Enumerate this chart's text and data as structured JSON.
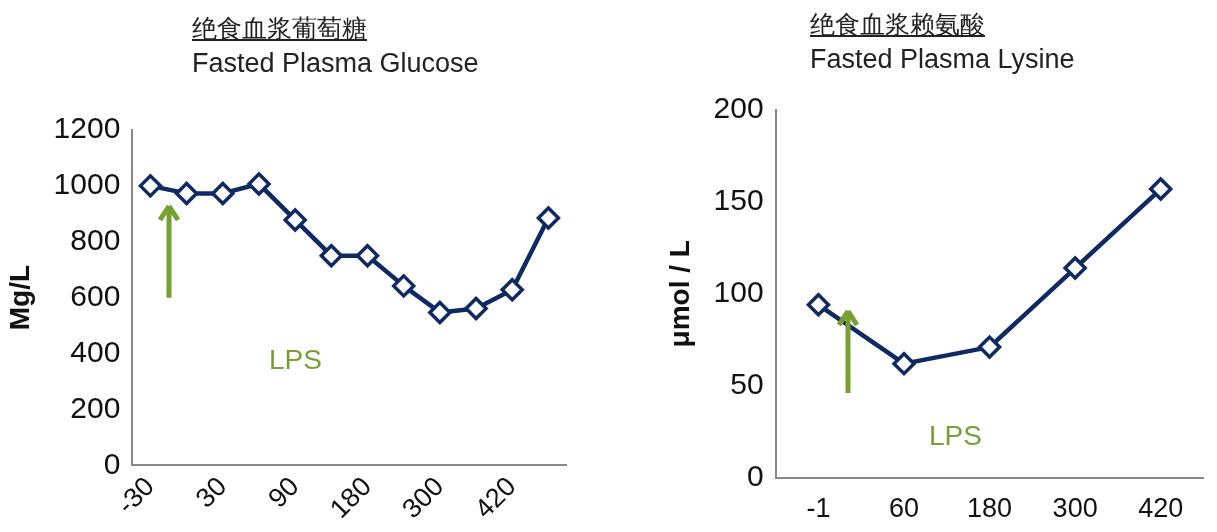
{
  "chart_data": [
    {
      "type": "line",
      "title": "绝食血浆葡萄糖",
      "subtitle": "Fasted Plasma Glucose",
      "ylabel": "Mg/L",
      "categories": [
        "-30",
        null,
        "30",
        null,
        "90",
        null,
        "180",
        null,
        "300",
        null,
        "420",
        null
      ],
      "series": [
        {
          "color": "#0f2a63",
          "values": [
            1000,
            973,
            973,
            1007,
            878,
            750,
            750,
            642,
            547,
            561,
            628,
            885
          ]
        }
      ],
      "ylim": [
        0,
        1200
      ],
      "yticks": [
        0,
        200,
        400,
        600,
        800,
        1000,
        1200
      ],
      "grid": false,
      "legend": false,
      "marker": "diamond",
      "annotations": [
        "LPS"
      ]
    },
    {
      "type": "line",
      "title": "绝食血浆赖氨酸",
      "subtitle": "Fasted Plasma Lysine",
      "ylabel": "μmol / L",
      "categories": [
        "-1",
        "60",
        "180",
        "300",
        "420"
      ],
      "series": [
        {
          "color": "#0f2a63",
          "values": [
            94,
            62,
            71,
            114,
            157
          ]
        }
      ],
      "ylim": [
        0,
        200
      ],
      "yticks": [
        0,
        50,
        100,
        150,
        200
      ],
      "grid": false,
      "legend": false,
      "marker": "diamond",
      "annotations": [
        "LPS"
      ]
    }
  ]
}
